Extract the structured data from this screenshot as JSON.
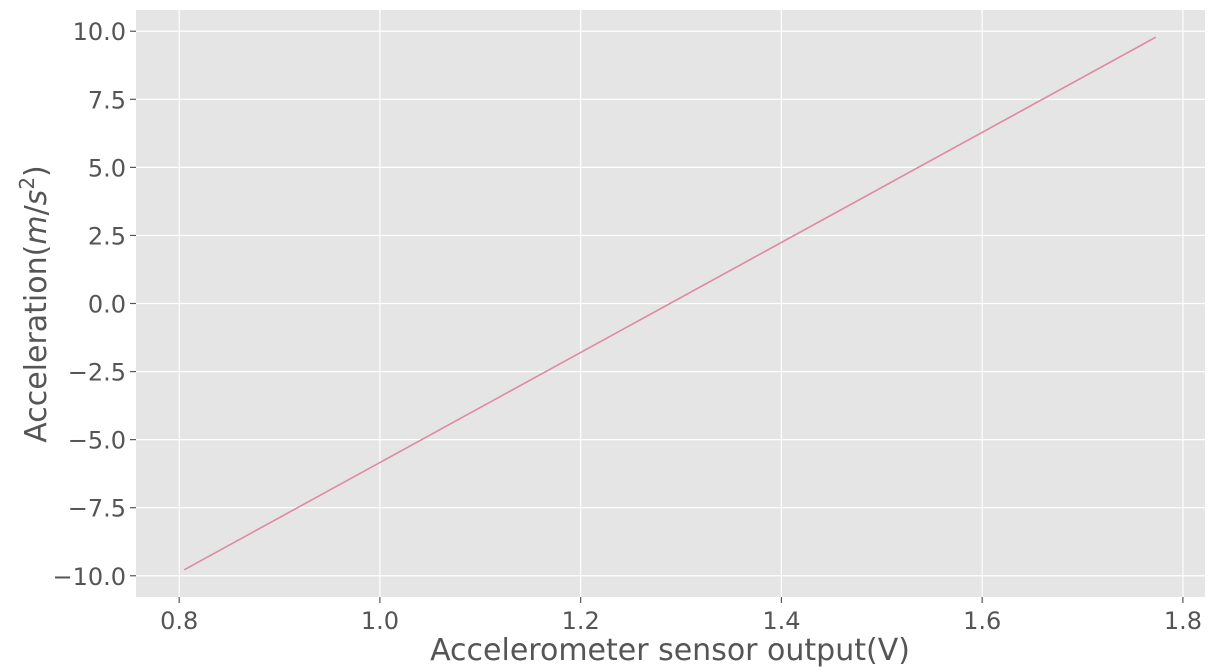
{
  "chart_data": {
    "type": "line",
    "title": "",
    "xlabel": "Accelerometer sensor output(V)",
    "ylabel": {
      "prefix": "Acceleration(",
      "var_m": "m",
      "slash": "/",
      "var_s": "s",
      "exponent": "2",
      "suffix": ")"
    },
    "xlim": [
      0.757,
      1.822
    ],
    "ylim": [
      -10.78,
      10.78
    ],
    "x_ticks": [
      0.8,
      1.0,
      1.2,
      1.4,
      1.6,
      1.8
    ],
    "x_tick_labels": [
      "0.8",
      "1.0",
      "1.2",
      "1.4",
      "1.6",
      "1.8"
    ],
    "y_ticks": [
      10.0,
      7.5,
      5.0,
      2.5,
      0.0,
      -2.5,
      -5.0,
      -7.5,
      -10.0
    ],
    "y_tick_labels": [
      "10.0",
      "7.5",
      "5.0",
      "2.5",
      "0.0",
      "−2.5",
      "−5.0",
      "−7.5",
      "−10.0"
    ],
    "grid": true,
    "style": "ggplot",
    "background_color": "#e5e5e5",
    "grid_color": "#ffffff",
    "text_color": "#555555",
    "series": [
      {
        "color": "#e08aa0",
        "x": [
          0.805,
          1.773
        ],
        "y": [
          -9.78,
          9.78
        ]
      }
    ]
  }
}
